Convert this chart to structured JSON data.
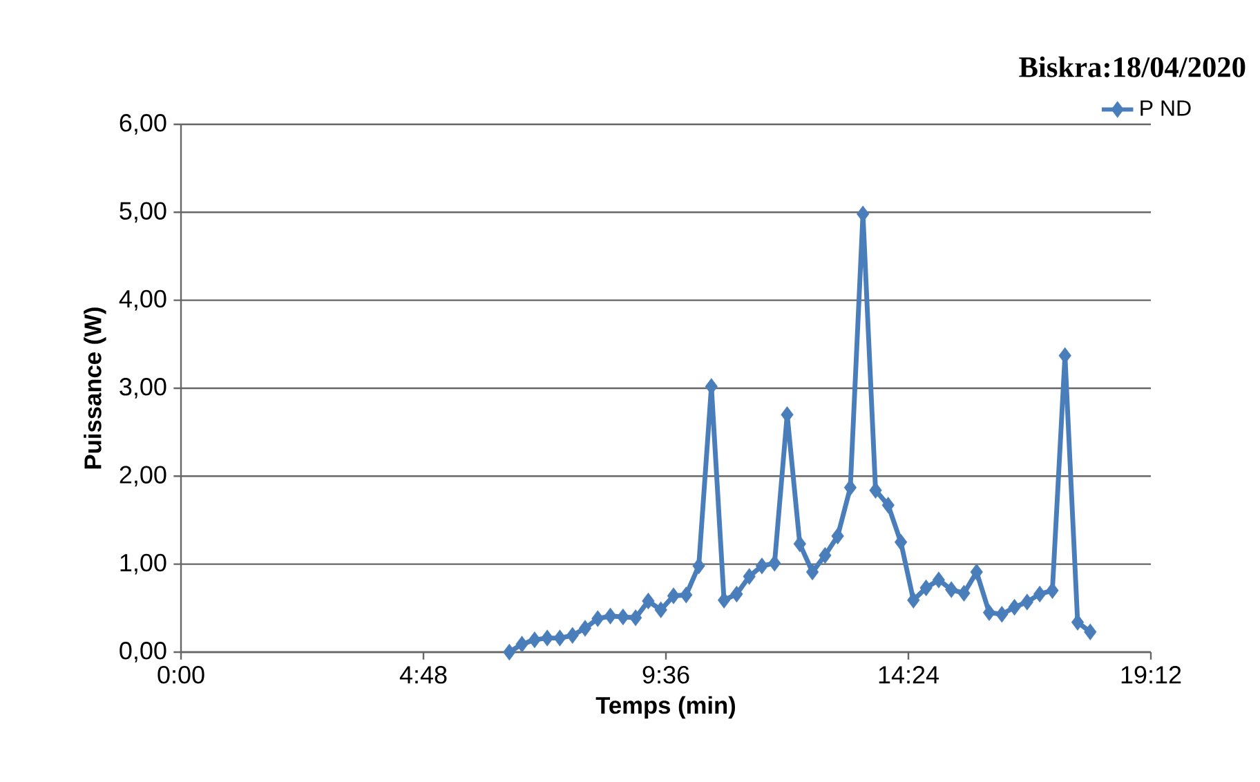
{
  "chart_data": {
    "type": "line",
    "title": "Biskra:18/04/2020",
    "xlabel": "Temps  (min)",
    "ylabel": "Puissance  (W)",
    "x": [
      6.5,
      6.75,
      7.0,
      7.25,
      7.5,
      7.75,
      8.0,
      8.25,
      8.5,
      8.75,
      9.0,
      9.25,
      9.5,
      9.75,
      10.0,
      10.25,
      10.5,
      10.75,
      11.0,
      11.25,
      11.5,
      11.75,
      12.0,
      12.25,
      12.5,
      12.75,
      13.0,
      13.25,
      13.5,
      13.75,
      14.0,
      14.25,
      14.5,
      14.75,
      15.0,
      15.25,
      15.5,
      15.75,
      16.0,
      16.25,
      16.5,
      16.75,
      17.0,
      17.25,
      17.5,
      17.75,
      18.0
    ],
    "series": [
      {
        "name": "P ND",
        "color": "#4a7ebb",
        "values": [
          0.0,
          0.09,
          0.14,
          0.16,
          0.16,
          0.19,
          0.27,
          0.38,
          0.41,
          0.4,
          0.39,
          0.58,
          0.48,
          0.64,
          0.65,
          0.98,
          3.02,
          0.59,
          0.66,
          0.86,
          0.98,
          1.01,
          2.7,
          1.23,
          0.91,
          1.1,
          1.32,
          1.87,
          4.98,
          1.84,
          1.67,
          1.25,
          0.59,
          0.73,
          0.82,
          0.71,
          0.67,
          0.91,
          0.45,
          0.43,
          0.51,
          0.57,
          0.66,
          0.7,
          3.37,
          0.34,
          0.23
        ]
      }
    ],
    "xlim": [
      0,
      19.2
    ],
    "xticks": [
      {
        "value": 0,
        "label": "0:00"
      },
      {
        "value": 4.8,
        "label": "4:48"
      },
      {
        "value": 9.6,
        "label": "9:36"
      },
      {
        "value": 14.4,
        "label": "14:24"
      },
      {
        "value": 19.2,
        "label": "19:12"
      }
    ],
    "ylim": [
      0,
      6
    ],
    "yticks": [
      {
        "value": 0,
        "label": "0,00"
      },
      {
        "value": 1,
        "label": "1,00"
      },
      {
        "value": 2,
        "label": "2,00"
      },
      {
        "value": 3,
        "label": "3,00"
      },
      {
        "value": 4,
        "label": "4,00"
      },
      {
        "value": 5,
        "label": "5,00"
      },
      {
        "value": 6,
        "label": "6,00"
      }
    ],
    "grid": "y",
    "legend": "top right",
    "marker": "diamond",
    "line_style": "solid"
  }
}
